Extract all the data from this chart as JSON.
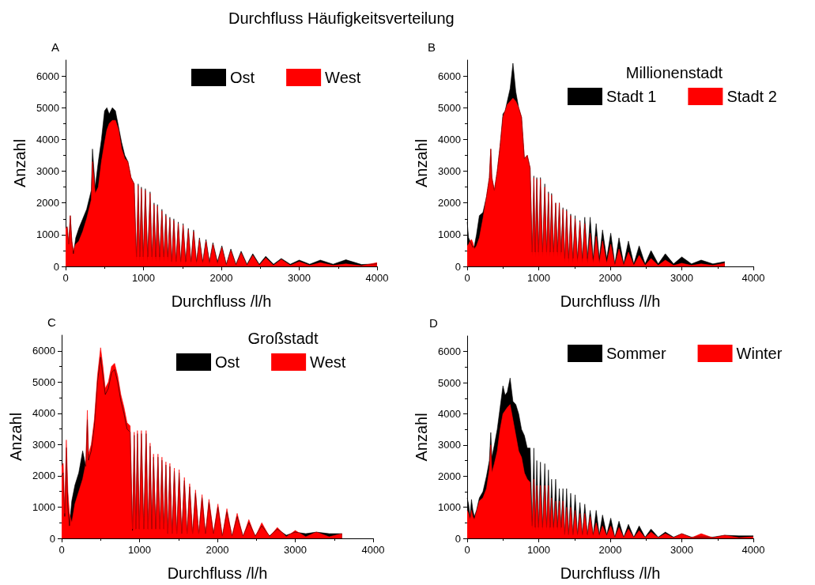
{
  "chart_data": [
    {
      "type": "area",
      "title": "Durchfluss Häufigkeitsverteilung",
      "annotations": [
        "A"
      ],
      "xlabel": "Durchfluss /l/h",
      "ylabel": "Anzahl",
      "legend": "top right",
      "xlim": [
        0,
        4000
      ],
      "xticks": [
        0,
        1000,
        2000,
        3000,
        4000
      ],
      "ylim": [
        0,
        6500
      ],
      "yticks": [
        0,
        1000,
        2000,
        3000,
        4000,
        5000,
        6000
      ],
      "x": [
        0,
        20,
        40,
        60,
        80,
        100,
        130,
        170,
        220,
        270,
        310,
        330,
        345,
        380,
        420,
        460,
        500,
        530,
        560,
        600,
        640,
        680,
        720,
        760,
        800,
        840,
        880,
        910,
        932,
        952,
        973,
        998,
        1024,
        1054,
        1085,
        1110,
        1136,
        1158,
        1180,
        1208,
        1237,
        1262,
        1288,
        1313,
        1339,
        1364,
        1390,
        1418,
        1447,
        1478,
        1509,
        1542,
        1576,
        1610,
        1644,
        1681,
        1719,
        1761,
        1803,
        1847,
        1892,
        1950,
        2007,
        2064,
        2122,
        2188,
        2254,
        2329,
        2404,
        2487,
        2570,
        2670,
        2770,
        2885,
        3000,
        3135,
        3271,
        3435,
        3600,
        3800,
        4000
      ],
      "series": [
        {
          "name": "Ost",
          "color": "#000000",
          "values": [
            1200,
            1250,
            700,
            1600,
            800,
            400,
            900,
            1200,
            1500,
            1800,
            2200,
            2400,
            3700,
            2500,
            3300,
            4000,
            4900,
            5000,
            4800,
            5000,
            4900,
            4400,
            3900,
            3500,
            3300,
            2800,
            2600,
            300,
            2600,
            300,
            2500,
            300,
            2450,
            300,
            2350,
            300,
            2000,
            300,
            1950,
            300,
            1800,
            300,
            1650,
            300,
            1550,
            150,
            1500,
            150,
            1400,
            150,
            1350,
            150,
            1200,
            150,
            1150,
            150,
            900,
            150,
            850,
            150,
            750,
            150,
            650,
            70,
            550,
            70,
            480,
            70,
            400,
            70,
            320,
            70,
            250,
            70,
            200,
            70,
            200,
            70,
            210,
            60,
            80
          ]
        },
        {
          "name": "West",
          "color": "#ff0000",
          "values": [
            1200,
            1250,
            700,
            1600,
            800,
            500,
            700,
            800,
            1100,
            1500,
            1900,
            2100,
            3300,
            2300,
            2500,
            3300,
            3900,
            4300,
            4500,
            4600,
            4600,
            4300,
            3700,
            3400,
            3300,
            2800,
            2600,
            150,
            2550,
            150,
            2450,
            150,
            2400,
            150,
            2300,
            150,
            1950,
            150,
            1900,
            150,
            1750,
            150,
            1600,
            150,
            1500,
            80,
            1450,
            80,
            1350,
            80,
            1300,
            80,
            1150,
            80,
            1100,
            80,
            850,
            80,
            800,
            80,
            700,
            80,
            600,
            30,
            500,
            30,
            430,
            30,
            350,
            30,
            270,
            30,
            220,
            30,
            150,
            30,
            120,
            30,
            80,
            20,
            120
          ]
        }
      ]
    },
    {
      "type": "area",
      "annotations": [
        "B"
      ],
      "xlabel": "Durchfluss /l/h",
      "ylabel": "Anzahl",
      "legend": "top right",
      "legend_title": "Millionenstadt",
      "xlim": [
        0,
        4000
      ],
      "xticks": [
        0,
        1000,
        2000,
        3000,
        4000
      ],
      "ylim": [
        0,
        6500
      ],
      "yticks": [
        0,
        1000,
        2000,
        3000,
        4000,
        5000,
        6000
      ],
      "x": [
        0,
        20,
        40,
        60,
        80,
        100,
        130,
        170,
        220,
        270,
        310,
        330,
        345,
        380,
        420,
        460,
        500,
        530,
        560,
        600,
        640,
        680,
        720,
        760,
        800,
        840,
        880,
        910,
        932,
        952,
        973,
        998,
        1024,
        1054,
        1085,
        1110,
        1136,
        1158,
        1180,
        1208,
        1237,
        1262,
        1288,
        1313,
        1339,
        1364,
        1390,
        1418,
        1447,
        1478,
        1509,
        1542,
        1576,
        1610,
        1644,
        1681,
        1719,
        1761,
        1803,
        1847,
        1892,
        1950,
        2007,
        2064,
        2122,
        2188,
        2254,
        2329,
        2404,
        2487,
        2570,
        2670,
        2770,
        2885,
        3000,
        3135,
        3271,
        3435,
        3600
      ],
      "series": [
        {
          "name": "Stadt 1",
          "color": "#000000",
          "values": [
            1400,
            900,
            800,
            700,
            600,
            650,
            1000,
            1600,
            1700,
            2200,
            2800,
            3700,
            2800,
            2400,
            3000,
            3800,
            4800,
            4900,
            5200,
            5600,
            6400,
            5500,
            5000,
            4700,
            3400,
            3500,
            3100,
            450,
            2850,
            450,
            2800,
            450,
            2800,
            450,
            2600,
            450,
            2350,
            450,
            2300,
            450,
            2000,
            450,
            2000,
            450,
            1850,
            250,
            1800,
            250,
            1650,
            250,
            1600,
            250,
            1450,
            250,
            1550,
            250,
            1550,
            250,
            1350,
            250,
            1150,
            250,
            1050,
            80,
            900,
            80,
            800,
            80,
            650,
            80,
            500,
            80,
            400,
            80,
            300,
            80,
            200,
            80,
            150
          ]
        },
        {
          "name": "Stadt 2",
          "color": "#ff0000",
          "values": [
            650,
            700,
            800,
            850,
            750,
            550,
            650,
            900,
            1500,
            2200,
            2800,
            3700,
            2800,
            2400,
            3000,
            3800,
            4700,
            4900,
            5100,
            5200,
            5300,
            5200,
            5000,
            4700,
            3400,
            3500,
            3100,
            300,
            2800,
            300,
            2750,
            300,
            2750,
            300,
            2500,
            300,
            2300,
            300,
            2250,
            300,
            2000,
            300,
            2000,
            300,
            1800,
            100,
            1750,
            100,
            1600,
            100,
            1500,
            100,
            1400,
            100,
            1350,
            100,
            1050,
            100,
            950,
            100,
            800,
            100,
            700,
            30,
            550,
            30,
            450,
            30,
            350,
            30,
            250,
            30,
            200,
            30,
            100,
            30,
            80,
            30,
            100
          ]
        }
      ]
    },
    {
      "type": "area",
      "annotations": [
        "C"
      ],
      "xlabel": "Durchfluss /l/h",
      "ylabel": "Anzahl",
      "legend": "top",
      "legend_title": "Großstadt",
      "xlim": [
        0,
        4000
      ],
      "xticks": [
        0,
        1000,
        2000,
        3000,
        4000
      ],
      "ylim": [
        0,
        6500
      ],
      "yticks": [
        0,
        1000,
        2000,
        3000,
        4000,
        5000,
        6000
      ],
      "x": [
        0,
        20,
        40,
        60,
        80,
        100,
        130,
        170,
        220,
        270,
        310,
        330,
        345,
        380,
        420,
        460,
        500,
        530,
        560,
        600,
        640,
        680,
        720,
        760,
        800,
        840,
        880,
        910,
        932,
        952,
        973,
        998,
        1024,
        1054,
        1085,
        1110,
        1136,
        1158,
        1180,
        1208,
        1237,
        1262,
        1288,
        1313,
        1339,
        1364,
        1390,
        1418,
        1447,
        1478,
        1509,
        1542,
        1576,
        1610,
        1644,
        1681,
        1719,
        1761,
        1803,
        1847,
        1892,
        1950,
        2007,
        2064,
        2122,
        2188,
        2254,
        2329,
        2404,
        2487,
        2570,
        2670,
        2770,
        2885,
        3000,
        3135,
        3271,
        3435,
        3600
      ],
      "series": [
        {
          "name": "Ost",
          "color": "#000000",
          "values": [
            2000,
            2100,
            700,
            2900,
            1000,
            400,
            1200,
            1700,
            2100,
            2800,
            2300,
            3800,
            2500,
            2800,
            3600,
            5000,
            5800,
            5200,
            4600,
            4800,
            5300,
            5400,
            5000,
            4400,
            4000,
            3500,
            3400,
            250,
            3300,
            300,
            3350,
            300,
            3350,
            300,
            3350,
            300,
            2950,
            300,
            2600,
            300,
            2600,
            300,
            2500,
            300,
            2350,
            150,
            2300,
            150,
            2150,
            150,
            2100,
            150,
            1850,
            150,
            1650,
            150,
            1450,
            150,
            1300,
            150,
            1150,
            150,
            1000,
            80,
            850,
            80,
            700,
            80,
            500,
            80,
            400,
            80,
            300,
            100,
            200,
            150,
            200,
            150,
            150
          ]
        },
        {
          "name": "West",
          "color": "#ff0000",
          "values": [
            2300,
            2400,
            800,
            3150,
            1500,
            800,
            500,
            1100,
            1500,
            1900,
            2400,
            4100,
            2700,
            3000,
            3800,
            5200,
            6100,
            5500,
            4800,
            5000,
            5500,
            5600,
            5200,
            4600,
            4200,
            3700,
            3600,
            300,
            3400,
            300,
            3450,
            300,
            3450,
            300,
            3450,
            300,
            3050,
            300,
            2700,
            300,
            2700,
            300,
            2600,
            300,
            2450,
            150,
            2400,
            150,
            2250,
            150,
            2200,
            150,
            1950,
            150,
            1750,
            150,
            1550,
            150,
            1400,
            150,
            1250,
            150,
            1100,
            50,
            950,
            50,
            800,
            50,
            600,
            50,
            500,
            50,
            350,
            50,
            250,
            50,
            200,
            50,
            150
          ]
        }
      ]
    },
    {
      "type": "area",
      "annotations": [
        "D"
      ],
      "xlabel": "Durchfluss /l/h",
      "ylabel": "Anzahl",
      "legend": "top right",
      "xlim": [
        0,
        4000
      ],
      "xticks": [
        0,
        1000,
        2000,
        3000,
        4000
      ],
      "ylim": [
        0,
        6500
      ],
      "yticks": [
        0,
        1000,
        2000,
        3000,
        4000,
        5000,
        6000
      ],
      "x": [
        0,
        20,
        40,
        60,
        80,
        100,
        130,
        170,
        220,
        270,
        310,
        330,
        345,
        380,
        420,
        460,
        500,
        530,
        560,
        600,
        640,
        680,
        720,
        760,
        800,
        840,
        880,
        910,
        932,
        952,
        973,
        998,
        1024,
        1054,
        1085,
        1110,
        1136,
        1158,
        1180,
        1208,
        1237,
        1262,
        1288,
        1313,
        1339,
        1364,
        1390,
        1418,
        1447,
        1478,
        1509,
        1542,
        1576,
        1610,
        1644,
        1681,
        1719,
        1761,
        1803,
        1847,
        1892,
        1950,
        2007,
        2064,
        2122,
        2188,
        2254,
        2329,
        2404,
        2487,
        2570,
        2670,
        2770,
        2885,
        3000,
        3135,
        3271,
        3435,
        3600,
        3800,
        4000
      ],
      "series": [
        {
          "name": "Sommer",
          "color": "#000000",
          "values": [
            1300,
            1100,
            700,
            1250,
            900,
            700,
            900,
            1300,
            1500,
            2000,
            2500,
            3400,
            2600,
            3000,
            3500,
            4200,
            4900,
            4600,
            4700,
            5150,
            4400,
            4300,
            4000,
            3500,
            3300,
            2900,
            2900,
            400,
            2900,
            350,
            2500,
            350,
            2450,
            350,
            2400,
            350,
            2200,
            350,
            1900,
            350,
            1900,
            350,
            1600,
            350,
            1600,
            120,
            1600,
            120,
            1450,
            120,
            1400,
            120,
            1150,
            120,
            1100,
            120,
            900,
            120,
            900,
            120,
            750,
            120,
            650,
            40,
            550,
            40,
            450,
            40,
            400,
            40,
            300,
            40,
            200,
            40,
            150,
            40,
            40,
            40,
            100,
            80,
            80
          ]
        },
        {
          "name": "Winter",
          "color": "#ff0000",
          "values": [
            900,
            800,
            600,
            900,
            700,
            600,
            850,
            1200,
            1300,
            1600,
            2200,
            3000,
            2100,
            2400,
            2800,
            3500,
            4000,
            4100,
            4200,
            4300,
            3800,
            3300,
            2800,
            2600,
            2100,
            1900,
            1800,
            300,
            1900,
            250,
            1700,
            250,
            1700,
            250,
            1700,
            250,
            1700,
            250,
            1300,
            250,
            1200,
            250,
            1200,
            250,
            1200,
            80,
            1000,
            80,
            1000,
            80,
            900,
            80,
            800,
            80,
            800,
            80,
            700,
            80,
            500,
            80,
            400,
            80,
            400,
            20,
            350,
            20,
            300,
            20,
            250,
            20,
            200,
            20,
            150,
            20,
            150,
            20,
            150,
            20,
            100,
            20,
            50
          ]
        }
      ]
    }
  ]
}
